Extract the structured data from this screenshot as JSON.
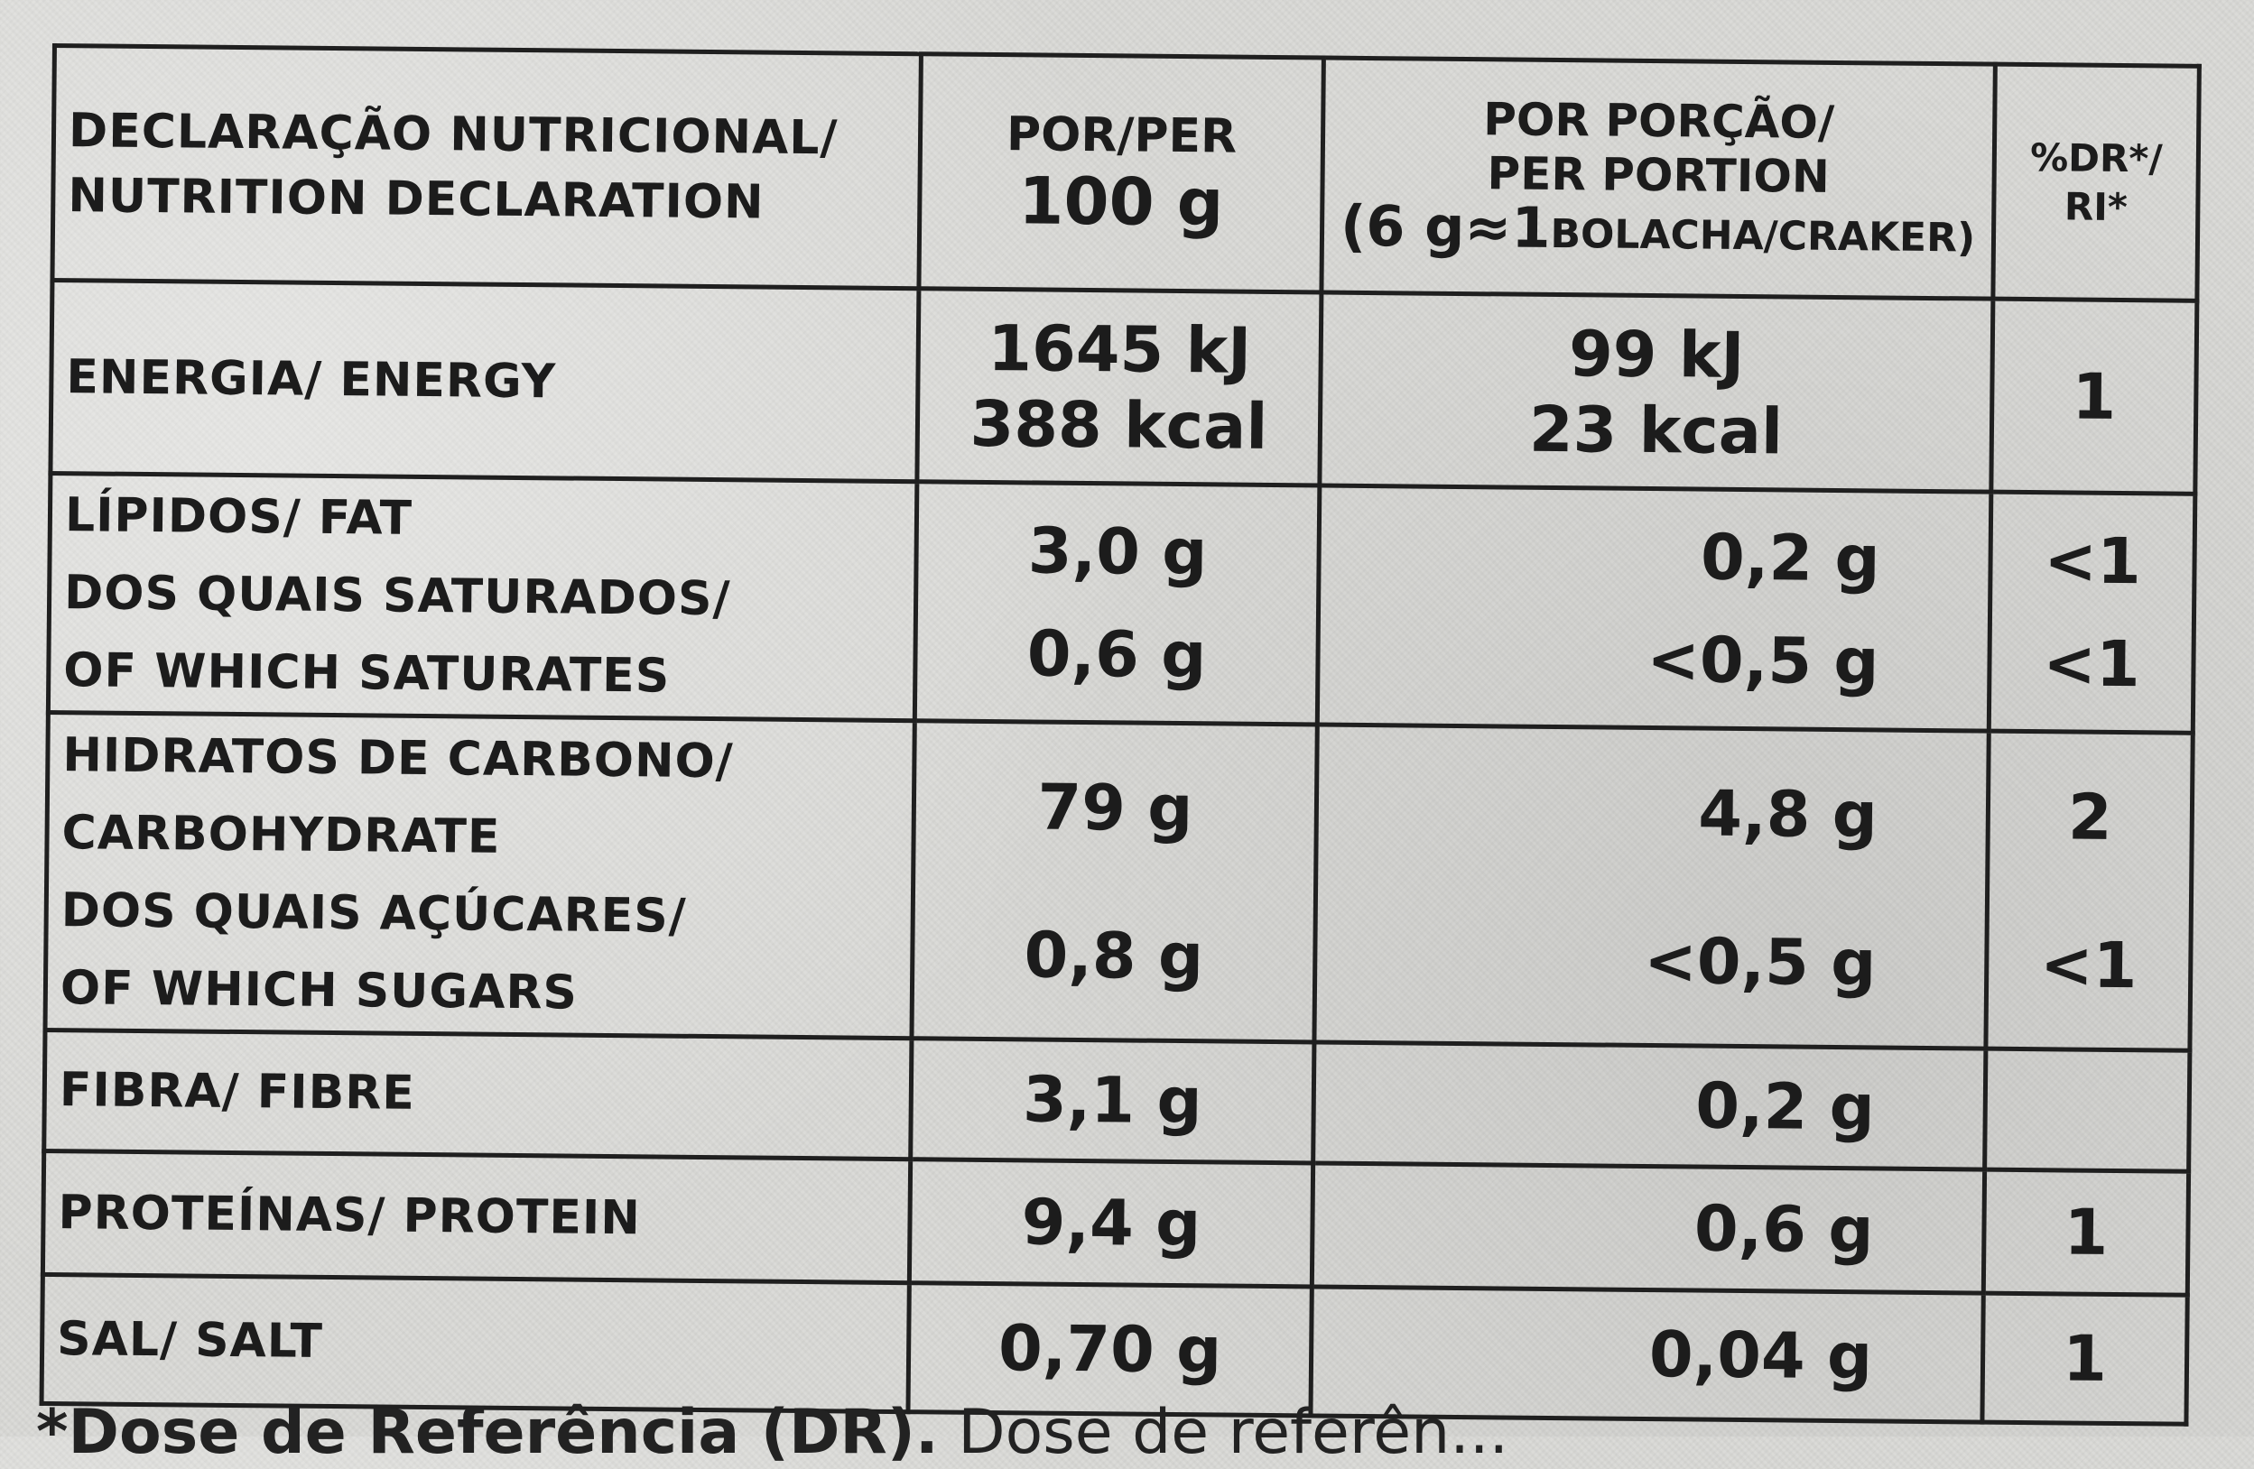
{
  "header": {
    "title_pt": "DECLARAÇÃO NUTRICIONAL/",
    "title_en": "NUTRITION DECLARATION",
    "per100_line1": "POR/PER",
    "per100_line2": "100 g",
    "portion_line1": "POR PORÇÃO/",
    "portion_line2": "PER PORTION",
    "portion_paren_open": "(6 g≈1",
    "portion_paren_close": "BOLACHA/CRAKER)",
    "dr_line1": "%DR*/",
    "dr_line2": "RI*"
  },
  "rows": {
    "energy": {
      "label": "ENERGIA/ ENERGY",
      "per100_kj": "1645 kJ",
      "per100_kcal": "388 kcal",
      "portion_kj": "99 kJ",
      "portion_kcal": "23 kcal",
      "dr": "1"
    },
    "fat": {
      "label": "LÍPIDOS/ FAT",
      "per100": "3,0 g",
      "portion": "0,2 g",
      "dr": "<1",
      "sub_label_pt": "DOS QUAIS SATURADOS/",
      "sub_label_en": "OF WHICH SATURATES",
      "sub_per100": "0,6 g",
      "sub_portion": "<0,5 g",
      "sub_dr": "<1"
    },
    "carbs": {
      "label_pt": "HIDRATOS DE CARBONO/",
      "label_en": "CARBOHYDRATE",
      "per100": "79 g",
      "portion": "4,8 g",
      "dr": "2",
      "sub_label_pt": "DOS QUAIS AÇÚCARES/",
      "sub_label_en": "OF WHICH SUGARS",
      "sub_per100": "0,8 g",
      "sub_portion": "<0,5 g",
      "sub_dr": "<1"
    },
    "fibre": {
      "label": "FIBRA/ FIBRE",
      "per100": "3,1 g",
      "portion": "0,2 g",
      "dr": ""
    },
    "protein": {
      "label": "PROTEÍNAS/ PROTEIN",
      "per100": "9,4 g",
      "portion": "0,6 g",
      "dr": "1"
    },
    "salt": {
      "label": "SAL/ SALT",
      "per100": "0,70 g",
      "portion": "0,04 g",
      "dr": "1"
    }
  },
  "footer": {
    "text_bold": "*Dose de Referência (DR).",
    "text_light": " Dose de referên..."
  }
}
